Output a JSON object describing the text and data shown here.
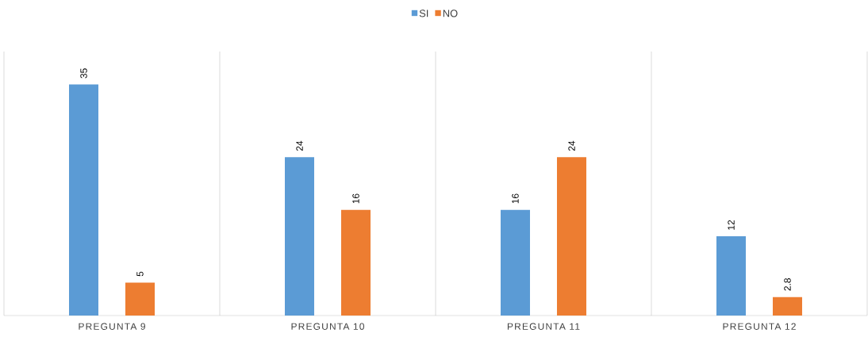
{
  "chart_data": {
    "type": "bar",
    "categories": [
      "PREGUNTA 9",
      "PREGUNTA 10",
      "PREGUNTA 11",
      "PREGUNTA 12"
    ],
    "series": [
      {
        "name": "SI",
        "color": "#5b9bd5",
        "values": [
          35,
          24,
          16,
          12
        ]
      },
      {
        "name": "NO",
        "color": "#ed7d31",
        "values": [
          5,
          16,
          24,
          2.8
        ]
      }
    ],
    "ylim": [
      0,
      40
    ],
    "data_labels": true,
    "legend": "top",
    "grid": "x"
  }
}
